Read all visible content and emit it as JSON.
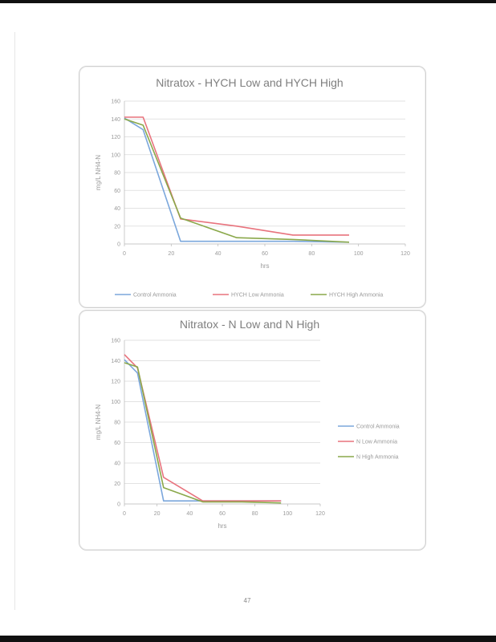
{
  "page": {
    "number": "47"
  },
  "chart_data": [
    {
      "type": "line",
      "title": "Nitratox - HYCH Low and HYCH High",
      "xlabel": "hrs",
      "ylabel": "mg/L NH4-N",
      "xlim": [
        0,
        120
      ],
      "ylim": [
        0,
        160
      ],
      "xticks": [
        0,
        20,
        40,
        60,
        80,
        100,
        120
      ],
      "yticks": [
        0,
        20,
        40,
        60,
        80,
        100,
        120,
        140,
        160
      ],
      "grid": "horizontal",
      "legend": "bottom",
      "series": [
        {
          "name": "Control Ammonia",
          "color": "#7ba7dc",
          "x": [
            0,
            8,
            24,
            48,
            72,
            96
          ],
          "y": [
            141,
            128,
            3,
            3,
            3,
            2
          ]
        },
        {
          "name": "HYCH Low Ammonia",
          "color": "#e8737d",
          "x": [
            0,
            8,
            24,
            48,
            72,
            96
          ],
          "y": [
            142,
            142,
            28,
            20,
            10,
            10
          ]
        },
        {
          "name": "HYCH High Ammonia",
          "color": "#8aa84a",
          "x": [
            0,
            8,
            24,
            48,
            72,
            96
          ],
          "y": [
            140,
            133,
            29,
            7,
            5,
            2
          ]
        }
      ]
    },
    {
      "type": "line",
      "title": "Nitratox - N Low and N High",
      "xlabel": "hrs",
      "ylabel": "mg/L NH4-N",
      "xlim": [
        0,
        120
      ],
      "ylim": [
        0,
        160
      ],
      "xticks": [
        0,
        20,
        40,
        60,
        80,
        100,
        120
      ],
      "yticks": [
        0,
        20,
        40,
        60,
        80,
        100,
        120,
        140,
        160
      ],
      "grid": "horizontal",
      "legend": "right",
      "series": [
        {
          "name": "Control Ammonia",
          "color": "#7ba7dc",
          "x": [
            0,
            8,
            24,
            48,
            72,
            96
          ],
          "y": [
            141,
            128,
            3,
            3,
            3,
            3
          ]
        },
        {
          "name": "N Low Ammonia",
          "color": "#e8737d",
          "x": [
            0,
            8,
            24,
            48,
            72,
            96
          ],
          "y": [
            146,
            133,
            26,
            3,
            3,
            3
          ]
        },
        {
          "name": "N High Ammonia",
          "color": "#8aa84a",
          "x": [
            0,
            8,
            24,
            48,
            72,
            96
          ],
          "y": [
            138,
            134,
            16,
            2,
            2,
            1
          ]
        }
      ]
    }
  ]
}
